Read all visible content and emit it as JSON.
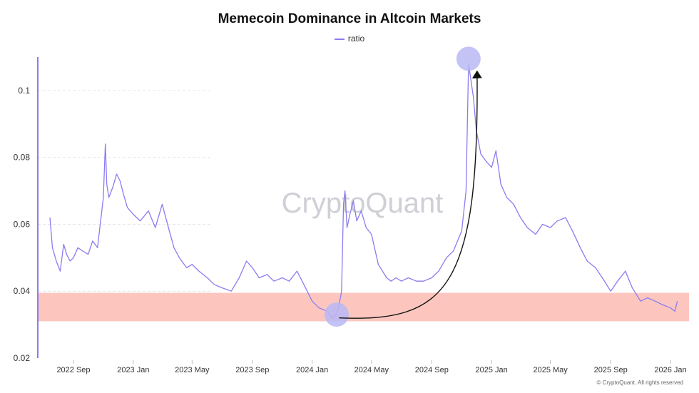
{
  "chart_data": {
    "type": "line",
    "title": "Memecoin Dominance in Altcoin Markets",
    "legend": [
      "ratio"
    ],
    "legend_placement": "top-center",
    "xlabel": "",
    "ylabel": "",
    "ylim": [
      0.02,
      0.11
    ],
    "y_ticks": [
      0.02,
      0.04,
      0.06,
      0.08,
      0.1
    ],
    "y_tick_labels": [
      "0.02",
      "0.04",
      "0.06",
      "0.08",
      "0.1"
    ],
    "x_ticks": [
      "2022 Sep",
      "2023 Jan",
      "2023 May",
      "2023 Sep",
      "2024 Jan",
      "2024 May",
      "2024 Sep",
      "2025 Jan",
      "2025 May",
      "2025 Sep",
      "2026 Jan"
    ],
    "grid": "horizontal dashed",
    "series": [
      {
        "name": "ratio",
        "color": "#8a7cf0",
        "x": [
          "2022-07-15",
          "2022-07-20",
          "2022-07-28",
          "2022-08-05",
          "2022-08-12",
          "2022-08-18",
          "2022-08-25",
          "2022-09-01",
          "2022-09-10",
          "2022-09-20",
          "2022-10-01",
          "2022-10-10",
          "2022-10-20",
          "2022-11-01",
          "2022-11-05",
          "2022-11-08",
          "2022-11-12",
          "2022-11-20",
          "2022-11-28",
          "2022-12-05",
          "2022-12-12",
          "2022-12-20",
          "2023-01-01",
          "2023-01-15",
          "2023-02-01",
          "2023-02-15",
          "2023-03-01",
          "2023-03-12",
          "2023-03-25",
          "2023-04-05",
          "2023-04-20",
          "2023-05-01",
          "2023-05-15",
          "2023-06-01",
          "2023-06-15",
          "2023-07-01",
          "2023-07-20",
          "2023-08-05",
          "2023-08-20",
          "2023-09-01",
          "2023-09-15",
          "2023-10-01",
          "2023-10-15",
          "2023-11-01",
          "2023-11-15",
          "2023-12-01",
          "2023-12-15",
          "2024-01-01",
          "2024-01-15",
          "2024-02-01",
          "2024-02-10",
          "2024-02-20",
          "2024-02-25",
          "2024-03-01",
          "2024-03-05",
          "2024-03-08",
          "2024-03-12",
          "2024-03-18",
          "2024-03-25",
          "2024-04-01",
          "2024-04-10",
          "2024-04-20",
          "2024-05-01",
          "2024-05-15",
          "2024-06-01",
          "2024-06-10",
          "2024-06-20",
          "2024-07-01",
          "2024-07-15",
          "2024-08-01",
          "2024-08-15",
          "2024-09-01",
          "2024-09-15",
          "2024-10-01",
          "2024-10-15",
          "2024-11-01",
          "2024-11-10",
          "2024-11-15",
          "2024-11-20",
          "2024-11-25",
          "2024-12-01",
          "2024-12-10",
          "2024-12-20",
          "2025-01-01",
          "2025-01-10",
          "2025-01-20",
          "2025-02-01",
          "2025-02-15",
          "2025-03-01",
          "2025-03-15",
          "2025-04-01",
          "2025-04-15",
          "2025-05-01",
          "2025-05-15",
          "2025-06-01",
          "2025-06-15",
          "2025-07-01",
          "2025-07-15",
          "2025-08-01",
          "2025-08-15",
          "2025-09-01",
          "2025-09-15",
          "2025-10-01",
          "2025-10-15",
          "2025-11-01",
          "2025-11-15",
          "2025-12-01",
          "2025-12-15",
          "2026-01-01",
          "2026-01-10",
          "2026-01-15"
        ],
        "values": [
          0.062,
          0.053,
          0.049,
          0.046,
          0.054,
          0.051,
          0.049,
          0.05,
          0.053,
          0.052,
          0.051,
          0.055,
          0.053,
          0.068,
          0.084,
          0.072,
          0.068,
          0.071,
          0.075,
          0.073,
          0.069,
          0.065,
          0.063,
          0.061,
          0.064,
          0.059,
          0.066,
          0.06,
          0.053,
          0.05,
          0.047,
          0.048,
          0.046,
          0.044,
          0.042,
          0.041,
          0.04,
          0.044,
          0.049,
          0.047,
          0.044,
          0.045,
          0.043,
          0.044,
          0.043,
          0.046,
          0.042,
          0.037,
          0.035,
          0.034,
          0.032,
          0.033,
          0.036,
          0.04,
          0.066,
          0.07,
          0.059,
          0.063,
          0.067,
          0.061,
          0.064,
          0.059,
          0.057,
          0.048,
          0.044,
          0.043,
          0.044,
          0.043,
          0.044,
          0.043,
          0.043,
          0.044,
          0.046,
          0.05,
          0.052,
          0.058,
          0.07,
          0.108,
          0.103,
          0.098,
          0.088,
          0.081,
          0.079,
          0.077,
          0.082,
          0.072,
          0.068,
          0.066,
          0.062,
          0.059,
          0.057,
          0.06,
          0.059,
          0.061,
          0.062,
          0.058,
          0.053,
          0.049,
          0.047,
          0.044,
          0.04,
          0.043,
          0.046,
          0.041,
          0.037,
          0.038,
          0.037,
          0.036,
          0.035,
          0.034,
          0.037
        ]
      }
    ],
    "highlight_band": {
      "y_from": 0.031,
      "y_to": 0.0395,
      "color": "#fbbcb4"
    },
    "annotations": [
      {
        "type": "circle",
        "x": "2024-02-20",
        "y": 0.033,
        "color": "#b9b8f5"
      },
      {
        "type": "circle",
        "x": "2024-11-15",
        "y": 0.1095,
        "color": "#b9b8f5"
      },
      {
        "type": "arrow",
        "from": {
          "x": "2024-02-25",
          "y": 0.032
        },
        "to": {
          "x": "2024-11-15",
          "y": 0.108
        }
      }
    ],
    "watermark": "CryptoQuant",
    "copyright": "© CryptoQuant. All rights reserved"
  }
}
